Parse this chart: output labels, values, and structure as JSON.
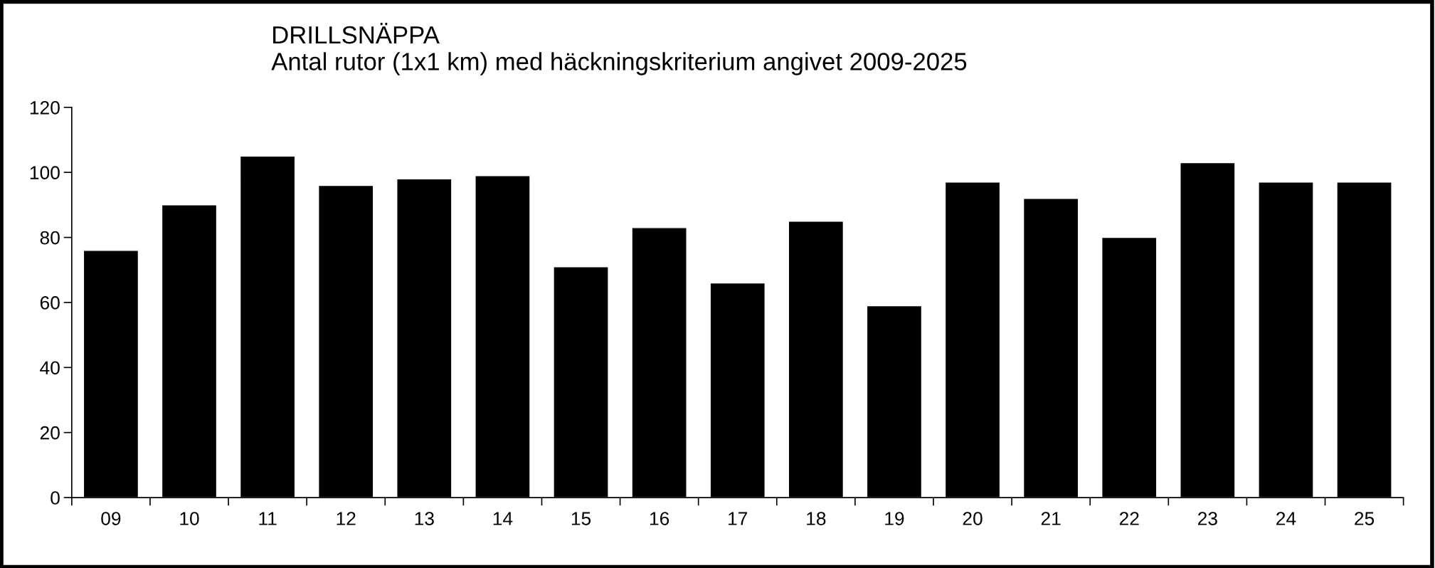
{
  "chart_data": {
    "type": "bar",
    "title": "DRILLSNÄPPA\nAntal rutor (1x1 km) med häckningskriterium angivet 2009-2025",
    "categories": [
      "09",
      "10",
      "11",
      "12",
      "13",
      "14",
      "15",
      "16",
      "17",
      "18",
      "19",
      "20",
      "21",
      "22",
      "23",
      "24",
      "25"
    ],
    "values": [
      76,
      90,
      105,
      96,
      98,
      99,
      71,
      83,
      66,
      85,
      59,
      97,
      92,
      80,
      103,
      97,
      97
    ],
    "color": "#000000",
    "ylim": [
      0,
      120
    ],
    "yticks": [
      0,
      20,
      40,
      60,
      80,
      100,
      120
    ],
    "grid": false,
    "legend": false
  }
}
